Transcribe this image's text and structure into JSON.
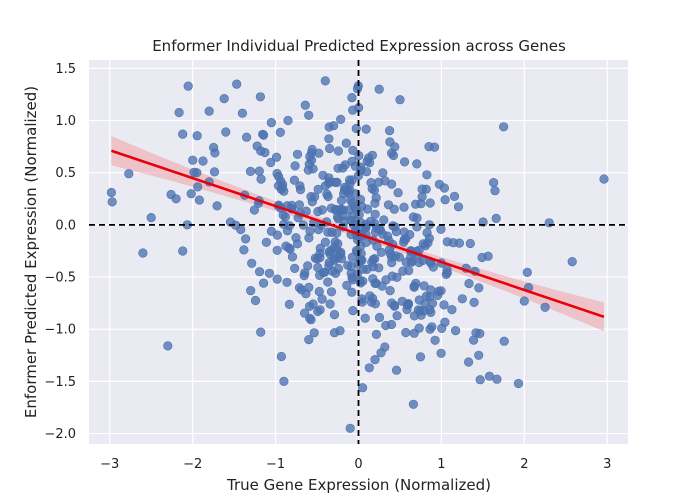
{
  "chart_data": {
    "type": "scatter",
    "title": "Enformer Individual Predicted Expression across Genes",
    "xlabel": "True Gene Expression (Normalized)",
    "ylabel": "Enformer Predicted Expression (Normalized)",
    "xlim": [
      -3.25,
      3.25
    ],
    "ylim": [
      -2.1,
      1.58
    ],
    "xticks": [
      -3,
      -2,
      -1,
      0,
      1,
      2,
      3
    ],
    "xtick_labels": [
      "−3",
      "−2",
      "−1",
      "0",
      "1",
      "2",
      "3"
    ],
    "yticks": [
      -2.0,
      -1.5,
      -1.0,
      -0.5,
      0.0,
      0.5,
      1.0,
      1.5
    ],
    "ytick_labels": [
      "−2.0",
      "−1.5",
      "−1.0",
      "−0.5",
      "0.0",
      "0.5",
      "1.0",
      "1.5"
    ],
    "grid": true,
    "reference_lines": {
      "x": 0,
      "y": 0,
      "style": "dashed",
      "color": "#000000"
    },
    "regression": {
      "x_range": [
        -2.98,
        2.96
      ],
      "slope": -0.268,
      "intercept": -0.088,
      "ci_halfwidth_at_ends": 0.14,
      "ci_halfwidth_at_mean": 0.035,
      "line_color": "#e8000b",
      "band_color": "#f0a0a8"
    },
    "colors": {
      "points": "#4c72b0",
      "plot_background": "#eaeaf2",
      "grid": "#ffffff"
    },
    "sample_count": 500,
    "x_mean": 0,
    "x_sd": 0.8,
    "residual_sd": 0.55,
    "points_shown": [
      [
        -2.98,
        0.31
      ],
      [
        -2.97,
        0.22
      ],
      [
        -2.77,
        0.49
      ],
      [
        -2.6,
        -0.27
      ],
      [
        -2.5,
        0.07
      ],
      [
        -2.3,
        -1.16
      ],
      [
        -2.2,
        0.25
      ],
      [
        -2.12,
        0.87
      ],
      [
        -2.12,
        -0.25
      ],
      [
        -2.0,
        0.62
      ],
      [
        -1.95,
        0.5
      ],
      [
        -1.8,
        1.09
      ],
      [
        -1.62,
        1.21
      ],
      [
        -1.6,
        0.89
      ],
      [
        -1.4,
        1.07
      ],
      [
        -1.35,
        0.84
      ],
      [
        -1.3,
        -0.63
      ],
      [
        -1.05,
        0.98
      ],
      [
        -0.9,
        -1.5
      ],
      [
        -0.85,
        1.0
      ],
      [
        -0.6,
        1.05
      ],
      [
        -0.4,
        1.38
      ],
      [
        -0.3,
        0.95
      ],
      [
        -0.08,
        1.22
      ],
      [
        -0.07,
        1.1
      ],
      [
        -0.1,
        -1.95
      ],
      [
        0.05,
        -1.56
      ],
      [
        0.13,
        -1.37
      ],
      [
        0.25,
        1.3
      ],
      [
        0.5,
        1.2
      ],
      [
        0.85,
        0.75
      ],
      [
        1.45,
        -1.25
      ],
      [
        1.58,
        -1.45
      ],
      [
        1.75,
        0.94
      ],
      [
        1.93,
        -1.52
      ],
      [
        2.05,
        -0.6
      ],
      [
        2.25,
        -0.79
      ],
      [
        2.3,
        0.02
      ],
      [
        2.96,
        0.44
      ],
      [
        2.0,
        -0.73
      ]
    ]
  }
}
